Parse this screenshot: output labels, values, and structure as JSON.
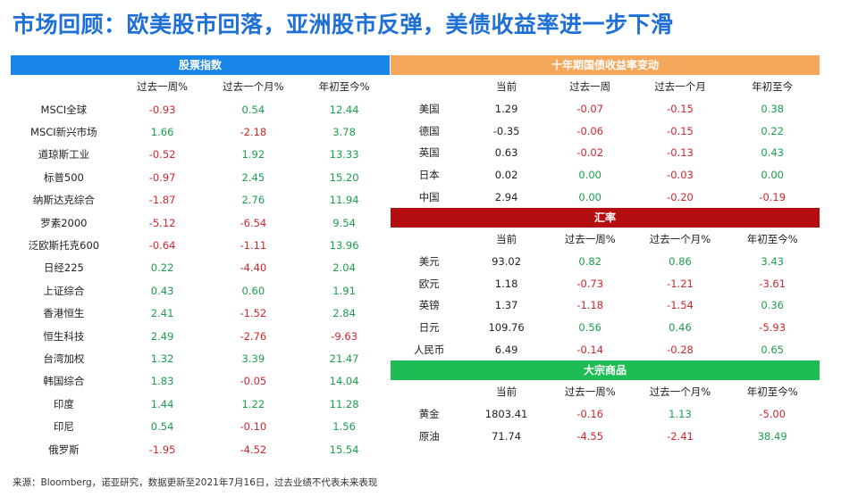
{
  "title": "市场回顾：欧美股市回落，亚洲股市反弹，美债收益率进一步下滑",
  "stock_indices": {
    "banner": "股票指数",
    "headers": [
      "",
      "过去一周%",
      "过去一个月%",
      "年初至今%"
    ],
    "rows": [
      {
        "name": "MSCI全球",
        "week": "-0.93",
        "month": "0.54",
        "ytd": "12.44"
      },
      {
        "name": "MSCI新兴市场",
        "week": "1.66",
        "month": "-2.18",
        "ytd": "3.78"
      },
      {
        "name": "道琼斯工业",
        "week": "-0.52",
        "month": "1.92",
        "ytd": "13.33"
      },
      {
        "name": "标普500",
        "week": "-0.97",
        "month": "2.45",
        "ytd": "15.20"
      },
      {
        "name": "纳斯达克综合",
        "week": "-1.87",
        "month": "2.76",
        "ytd": "11.94"
      },
      {
        "name": "罗素2000",
        "week": "-5.12",
        "month": "-6.54",
        "ytd": "9.54"
      },
      {
        "name": "泛欧斯托克600",
        "week": "-0.64",
        "month": "-1.11",
        "ytd": "13.96"
      },
      {
        "name": "日经225",
        "week": "0.22",
        "month": "-4.40",
        "ytd": "2.04"
      },
      {
        "name": "上证综合",
        "week": "0.43",
        "month": "0.60",
        "ytd": "1.91"
      },
      {
        "name": "香港恒生",
        "week": "2.41",
        "month": "-1.52",
        "ytd": "2.84"
      },
      {
        "name": "恒生科技",
        "week": "2.49",
        "month": "-2.76",
        "ytd": "-9.63"
      },
      {
        "name": "台湾加权",
        "week": "1.32",
        "month": "3.39",
        "ytd": "21.47"
      },
      {
        "name": "韩国综合",
        "week": "1.83",
        "month": "-0.05",
        "ytd": "14.04"
      },
      {
        "name": "印度",
        "week": "1.44",
        "month": "1.22",
        "ytd": "11.28"
      },
      {
        "name": "印尼",
        "week": "0.54",
        "month": "-0.10",
        "ytd": "1.56"
      },
      {
        "name": "俄罗斯",
        "week": "-1.95",
        "month": "-4.52",
        "ytd": "15.54"
      }
    ]
  },
  "treasury": {
    "banner": "十年期国债收益率变动",
    "headers": [
      "",
      "当前",
      "过去一周",
      "过去一个月",
      "年初至今"
    ],
    "rows": [
      {
        "name": "美国",
        "current": "1.29",
        "week": "-0.07",
        "month": "-0.15",
        "ytd": "0.38"
      },
      {
        "name": "德国",
        "current": "-0.35",
        "week": "-0.06",
        "month": "-0.15",
        "ytd": "0.22"
      },
      {
        "name": "英国",
        "current": "0.63",
        "week": "-0.02",
        "month": "-0.13",
        "ytd": "0.43"
      },
      {
        "name": "日本",
        "current": "0.02",
        "week": "0.00",
        "month": "-0.03",
        "ytd": "0.00"
      },
      {
        "name": "中国",
        "current": "2.94",
        "week": "0.00",
        "month": "-0.20",
        "ytd": "-0.19"
      }
    ]
  },
  "fx": {
    "banner": "汇率",
    "headers": [
      "",
      "当前",
      "过去一周%",
      "过去一个月%",
      "年初至今%"
    ],
    "rows": [
      {
        "name": "美元",
        "current": "93.02",
        "week": "0.82",
        "month": "0.86",
        "ytd": "3.43"
      },
      {
        "name": "欧元",
        "current": "1.18",
        "week": "-0.73",
        "month": "-1.21",
        "ytd": "-3.61"
      },
      {
        "name": "英镑",
        "current": "1.37",
        "week": "-1.18",
        "month": "-1.54",
        "ytd": "0.36"
      },
      {
        "name": "日元",
        "current": "109.76",
        "week": "0.56",
        "month": "0.46",
        "ytd": "-5.93"
      },
      {
        "name": "人民币",
        "current": "6.49",
        "week": "-0.14",
        "month": "-0.28",
        "ytd": "0.65"
      }
    ]
  },
  "commodities": {
    "banner": "大宗商品",
    "headers": [
      "",
      "当前",
      "过去一周%",
      "过去一个月%",
      "年初至今%"
    ],
    "rows": [
      {
        "name": "黄金",
        "current": "1803.41",
        "week": "-0.16",
        "month": "1.13",
        "ytd": "-5.00"
      },
      {
        "name": "原油",
        "current": "71.74",
        "week": "-4.55",
        "month": "-2.41",
        "ytd": "38.49"
      }
    ]
  },
  "footnote": "来源：Bloomberg，诺亚研究，数据更新至2021年7月16日，过去业绩不代表未来表现",
  "colors": {
    "negative": "#d0262e",
    "positive": "#1a9e4e",
    "title": "#1e6fd6"
  }
}
